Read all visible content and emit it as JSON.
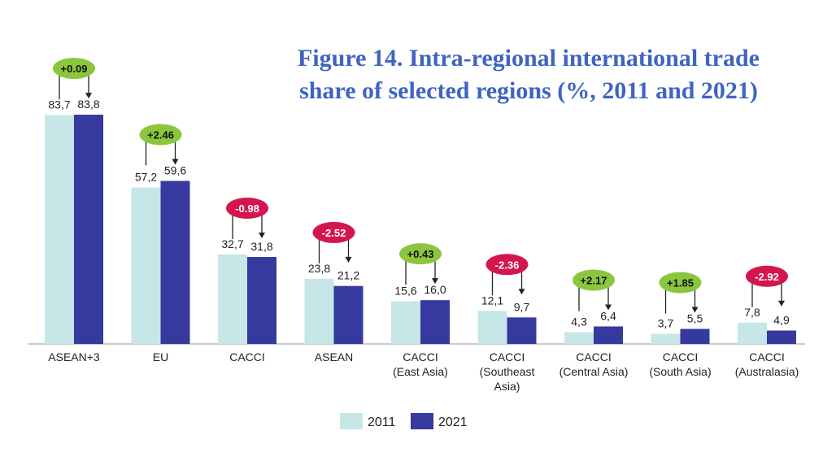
{
  "chart_data": {
    "type": "bar",
    "title_lines": [
      "Figure 14. Intra-regional international trade",
      "share of selected regions (%, 2011 and 2021)"
    ],
    "categories": [
      [
        "ASEAN+3"
      ],
      [
        "EU"
      ],
      [
        "CACCI"
      ],
      [
        "ASEAN"
      ],
      [
        "CACCI",
        "(East Asia)"
      ],
      [
        "CACCI",
        "(Southeast",
        "Asia)"
      ],
      [
        "CACCI",
        "(Central Asia)"
      ],
      [
        "CACCI",
        "(South Asia)"
      ],
      [
        "CACCI",
        "(Australasia)"
      ]
    ],
    "series": [
      {
        "name": "2011",
        "color": "#c6e6e8",
        "values": [
          83.7,
          57.2,
          32.7,
          23.8,
          15.6,
          12.1,
          4.3,
          3.7,
          7.8
        ],
        "labels": [
          "83,7",
          "57,2",
          "32,7",
          "23,8",
          "15,6",
          "12,1",
          "4,3",
          "3,7",
          "7,8"
        ]
      },
      {
        "name": "2021",
        "color": "#36399e",
        "values": [
          83.8,
          59.6,
          31.8,
          21.2,
          16.0,
          9.7,
          6.4,
          5.5,
          4.9
        ],
        "labels": [
          "83,8",
          "59,6",
          "31,8",
          "21,2",
          "16,0",
          "9,7",
          "6,4",
          "5,5",
          "4,9"
        ]
      }
    ],
    "changes": [
      "+0.09",
      "+2.46",
      "-0.98",
      "-2.52",
      "+0.43",
      "-2.36",
      "+2.17",
      "+1.85",
      "-2.92"
    ],
    "change_colors": {
      "positive": "#8cc63f",
      "negative": "#d4164e"
    },
    "ylim": [
      0,
      85
    ],
    "grid": false,
    "legend_position": "bottom-center"
  }
}
